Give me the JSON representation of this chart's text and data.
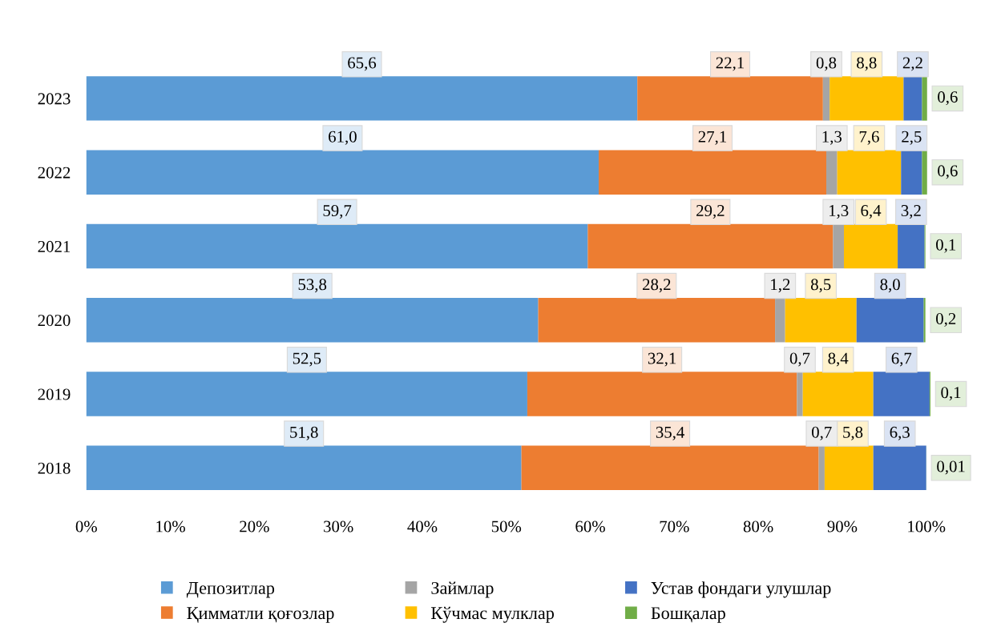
{
  "chart_data": {
    "type": "bar",
    "orientation": "horizontal",
    "stacked": true,
    "categories": [
      "2023",
      "2022",
      "2021",
      "2020",
      "2019",
      "2018"
    ],
    "series": [
      {
        "name": "Депозитлар",
        "color": "#5b9bd5",
        "values": [
          65.6,
          61.0,
          59.7,
          53.8,
          52.5,
          51.8
        ],
        "value_labels": [
          "65,6",
          "61,0",
          "59,7",
          "53,8",
          "52,5",
          "51,8"
        ]
      },
      {
        "name": "Қимматли қоғозлар",
        "color": "#ed7d31",
        "values": [
          22.1,
          27.1,
          29.2,
          28.2,
          32.1,
          35.4
        ],
        "value_labels": [
          "22,1",
          "27,1",
          "29,2",
          "28,2",
          "32,1",
          "35,4"
        ]
      },
      {
        "name": "Займлар",
        "color": "#a5a5a5",
        "values": [
          0.8,
          1.3,
          1.3,
          1.2,
          0.7,
          0.7
        ],
        "value_labels": [
          "0,8",
          "1,3",
          "1,3",
          "1,2",
          "0,7",
          "0,7"
        ]
      },
      {
        "name": "Кўчмас мулклар",
        "color": "#ffc000",
        "values": [
          8.8,
          7.6,
          6.4,
          8.5,
          8.4,
          5.8
        ],
        "value_labels": [
          "8,8",
          "7,6",
          "6,4",
          "8,5",
          "8,4",
          "5,8"
        ]
      },
      {
        "name": "Устав фондаги улушлар",
        "color": "#4472c4",
        "values": [
          2.2,
          2.5,
          3.2,
          8.0,
          6.7,
          6.3
        ],
        "value_labels": [
          "2,2",
          "2,5",
          "3,2",
          "8,0",
          "6,7",
          "6,3"
        ]
      },
      {
        "name": "Бошқалар",
        "color": "#70ad47",
        "values": [
          0.6,
          0.6,
          0.1,
          0.2,
          0.1,
          0.01
        ],
        "value_labels": [
          "0,6",
          "0,6",
          "0,1",
          "0,2",
          "0,1",
          "0,01"
        ]
      }
    ],
    "xlim": [
      0,
      100.5
    ],
    "xticks": [
      {
        "value": 0,
        "label": "0%"
      },
      {
        "value": 10,
        "label": "10%"
      },
      {
        "value": 20,
        "label": "20%"
      },
      {
        "value": 30,
        "label": "30%"
      },
      {
        "value": 40,
        "label": "40%"
      },
      {
        "value": 50,
        "label": "50%"
      },
      {
        "value": 60,
        "label": "60%"
      },
      {
        "value": 70,
        "label": "70%"
      },
      {
        "value": 80,
        "label": "80%"
      },
      {
        "value": 90,
        "label": "90%"
      },
      {
        "value": 100,
        "label": "100%"
      }
    ],
    "grid": false,
    "legend": "bottom"
  }
}
